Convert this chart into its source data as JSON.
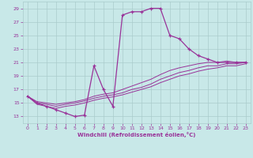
{
  "xlabel": "Windchill (Refroidissement éolien,°C)",
  "background_color": "#c8e8e8",
  "grid_color": "#aacccc",
  "line_color": "#993399",
  "x_hours": [
    0,
    1,
    2,
    3,
    4,
    5,
    6,
    7,
    8,
    9,
    10,
    11,
    12,
    13,
    14,
    15,
    16,
    17,
    18,
    19,
    20,
    21,
    22,
    23
  ],
  "temp_curve": [
    16,
    15,
    14.5,
    14,
    13.5,
    13,
    13.2,
    20.5,
    17,
    14.5,
    28,
    28.5,
    28.5,
    29,
    29,
    25,
    24.5,
    23,
    22,
    21.5,
    21,
    21,
    21,
    21
  ],
  "windchill_curve1": [
    16,
    15.2,
    15.0,
    14.8,
    15.0,
    15.2,
    15.5,
    16.0,
    16.3,
    16.5,
    17.0,
    17.5,
    18.0,
    18.5,
    19.2,
    19.8,
    20.2,
    20.5,
    20.8,
    21.0,
    21.0,
    21.2,
    21.0,
    21.0
  ],
  "windchill_curve2": [
    16,
    15.0,
    14.8,
    14.5,
    14.8,
    15.0,
    15.3,
    15.7,
    16.0,
    16.2,
    16.5,
    17.0,
    17.3,
    17.8,
    18.5,
    19.0,
    19.5,
    19.8,
    20.2,
    20.5,
    20.5,
    20.8,
    20.8,
    21.0
  ],
  "windchill_curve3": [
    16,
    14.8,
    14.5,
    14.2,
    14.5,
    14.7,
    15.0,
    15.4,
    15.7,
    15.9,
    16.2,
    16.6,
    17.0,
    17.4,
    18.0,
    18.5,
    19.0,
    19.3,
    19.7,
    20.0,
    20.2,
    20.5,
    20.5,
    20.8
  ],
  "ylim": [
    12,
    30
  ],
  "xlim": [
    -0.5,
    23.5
  ],
  "yticks": [
    13,
    15,
    17,
    19,
    21,
    23,
    25,
    27,
    29
  ],
  "xticks": [
    0,
    1,
    2,
    3,
    4,
    5,
    6,
    7,
    8,
    9,
    10,
    11,
    12,
    13,
    14,
    15,
    16,
    17,
    18,
    19,
    20,
    21,
    22,
    23
  ]
}
